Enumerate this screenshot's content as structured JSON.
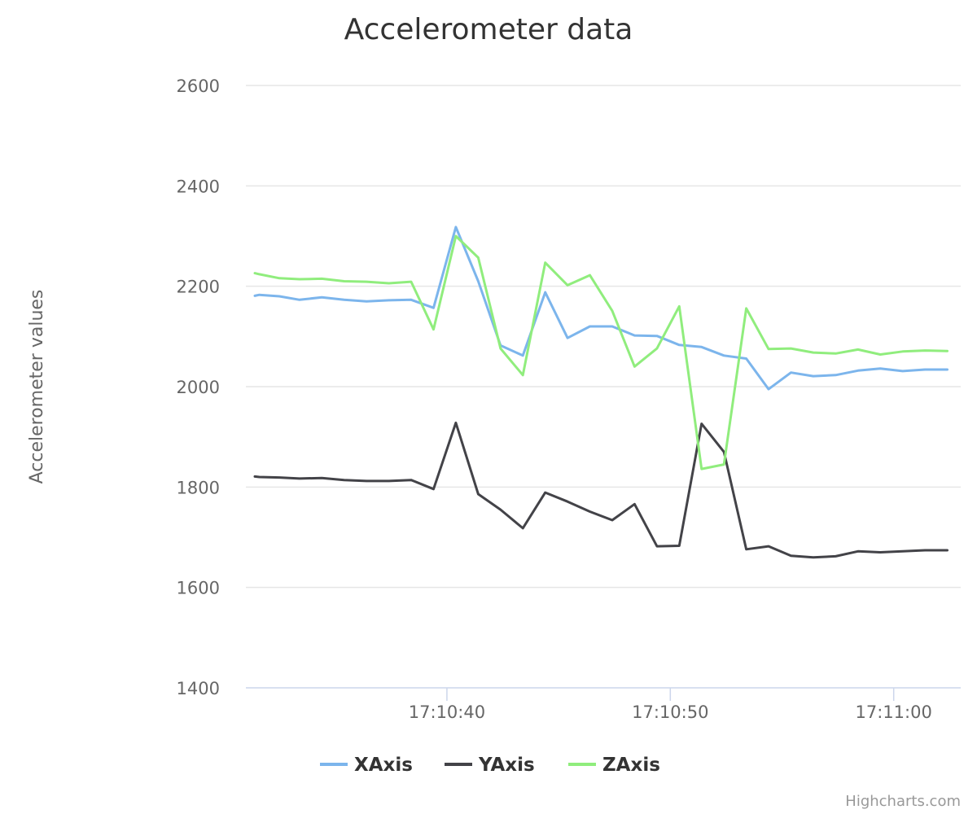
{
  "chart_data": {
    "type": "line",
    "title": "Accelerometer data",
    "ylabel": "Accelerometer values",
    "xlabel": "",
    "ylim": [
      1400,
      2600
    ],
    "yticks": [
      1400,
      1600,
      1800,
      2000,
      2200,
      2400,
      2600
    ],
    "xlim": [
      "17:10:31",
      "17:11:03"
    ],
    "xticks": [
      "17:10:40",
      "17:10:50",
      "17:11:00"
    ],
    "grid": true,
    "legend_position": "bottom-center",
    "x": [
      "17:10:31.4",
      "17:10:31.6",
      "17:10:32.5",
      "17:10:33.4",
      "17:10:34.4",
      "17:10:35.4",
      "17:10:36.4",
      "17:10:37.4",
      "17:10:38.4",
      "17:10:39.4",
      "17:10:40.4",
      "17:10:41.4",
      "17:10:42.4",
      "17:10:43.4",
      "17:10:44.4",
      "17:10:45.4",
      "17:10:46.4",
      "17:10:47.4",
      "17:10:48.4",
      "17:10:49.4",
      "17:10:50.4",
      "17:10:51.4",
      "17:10:52.4",
      "17:10:53.4",
      "17:10:54.4",
      "17:10:55.4",
      "17:10:56.4",
      "17:10:57.4",
      "17:10:58.4",
      "17:10:59.4",
      "17:11:00.4",
      "17:11:01.4",
      "17:11:02.4"
    ],
    "series": [
      {
        "name": "XAxis",
        "color": "#7cb5ec",
        "values": [
          2181,
          2183,
          2180,
          2173,
          2178,
          2173,
          2170,
          2172,
          2173,
          2157,
          2318,
          2210,
          2082,
          2062,
          2188,
          2097,
          2120,
          2120,
          2102,
          2101,
          2083,
          2079,
          2062,
          2056,
          1995,
          2028,
          2021,
          2023,
          2032,
          2036,
          2031,
          2034,
          2034
        ]
      },
      {
        "name": "YAxis",
        "color": "#434348",
        "values": [
          1821,
          1820,
          1819,
          1817,
          1818,
          1814,
          1812,
          1812,
          1814,
          1796,
          1928,
          1786,
          1755,
          1718,
          1789,
          1771,
          1751,
          1734,
          1766,
          1682,
          1683,
          1926,
          1870,
          1676,
          1682,
          1663,
          1660,
          1662,
          1672,
          1670,
          1672,
          1674,
          1674
        ]
      },
      {
        "name": "ZAxis",
        "color": "#90ed7d",
        "values": [
          2226,
          2224,
          2216,
          2214,
          2215,
          2210,
          2209,
          2206,
          2209,
          2114,
          2300,
          2257,
          2076,
          2023,
          2247,
          2202,
          2222,
          2151,
          2040,
          2076,
          2160,
          1836,
          1845,
          2156,
          2075,
          2076,
          2068,
          2066,
          2074,
          2064,
          2070,
          2072,
          2071
        ]
      }
    ]
  },
  "credits": "Highcharts.com"
}
